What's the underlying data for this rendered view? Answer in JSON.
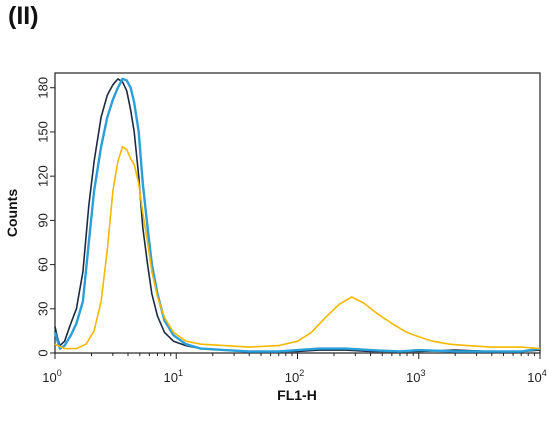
{
  "panel_label": "(II)",
  "chart_data": {
    "type": "line",
    "title": "",
    "xlabel": "FL1-H",
    "ylabel": "Counts",
    "xscale": "log",
    "xlim": [
      1,
      10000
    ],
    "ylim": [
      0,
      190
    ],
    "x_ticks": [
      {
        "value": 1,
        "base": "10",
        "exp": "0"
      },
      {
        "value": 10,
        "base": "10",
        "exp": "1"
      },
      {
        "value": 100,
        "base": "10",
        "exp": "2"
      },
      {
        "value": 1000,
        "base": "10",
        "exp": "3"
      },
      {
        "value": 10000,
        "base": "10",
        "exp": "4"
      }
    ],
    "y_ticks": [
      0,
      30,
      60,
      90,
      120,
      150,
      180
    ],
    "grid": false,
    "legend": "none",
    "series": [
      {
        "color": "#1b2a44",
        "x": [
          1.0,
          1.05,
          1.1,
          1.2,
          1.35,
          1.5,
          1.7,
          1.9,
          2.1,
          2.4,
          2.7,
          3.0,
          3.3,
          3.6,
          3.9,
          4.2,
          4.5,
          4.9,
          5.3,
          5.8,
          6.3,
          7.0,
          8.0,
          9.5,
          12,
          16,
          25,
          40,
          70,
          100,
          150,
          250,
          400,
          700,
          1000,
          2000,
          4000,
          7000,
          10000
        ],
        "y": [
          18,
          10,
          5,
          8,
          20,
          30,
          55,
          100,
          130,
          160,
          175,
          182,
          186,
          184,
          178,
          165,
          150,
          120,
          85,
          60,
          40,
          25,
          14,
          8,
          5,
          3,
          2,
          1,
          1,
          1,
          2,
          2,
          1,
          1,
          1,
          2,
          1,
          1,
          2
        ]
      },
      {
        "color": "#2b9fd8",
        "x": [
          1.0,
          1.05,
          1.1,
          1.2,
          1.35,
          1.5,
          1.7,
          1.9,
          2.1,
          2.4,
          2.7,
          3.0,
          3.3,
          3.6,
          3.9,
          4.2,
          4.5,
          4.9,
          5.3,
          5.8,
          6.3,
          7.0,
          8.0,
          9.5,
          12,
          16,
          25,
          40,
          70,
          100,
          150,
          250,
          400,
          700,
          1000,
          2000,
          4000,
          7000,
          10000
        ],
        "y": [
          14,
          8,
          3,
          5,
          12,
          20,
          35,
          75,
          110,
          140,
          160,
          172,
          180,
          186,
          185,
          180,
          170,
          150,
          115,
          85,
          60,
          40,
          22,
          12,
          6,
          3,
          2,
          1,
          1,
          2,
          3,
          3,
          2,
          1,
          2,
          1,
          1,
          1,
          3
        ]
      },
      {
        "color": "#f5b800",
        "x": [
          1.0,
          1.2,
          1.5,
          1.8,
          2.1,
          2.4,
          2.7,
          3.0,
          3.3,
          3.6,
          3.9,
          4.2,
          4.5,
          4.9,
          5.3,
          5.8,
          6.3,
          7.0,
          8.0,
          9.5,
          12,
          16,
          25,
          40,
          70,
          100,
          130,
          170,
          220,
          280,
          350,
          450,
          600,
          800,
          1000,
          1300,
          1800,
          2500,
          4000,
          7000,
          10000
        ],
        "y": [
          6,
          3,
          3,
          6,
          15,
          35,
          70,
          110,
          130,
          140,
          138,
          132,
          128,
          115,
          95,
          75,
          55,
          38,
          24,
          14,
          8,
          6,
          5,
          4,
          5,
          8,
          14,
          24,
          33,
          38,
          34,
          27,
          20,
          14,
          11,
          8,
          6,
          5,
          4,
          4,
          3
        ]
      }
    ]
  }
}
